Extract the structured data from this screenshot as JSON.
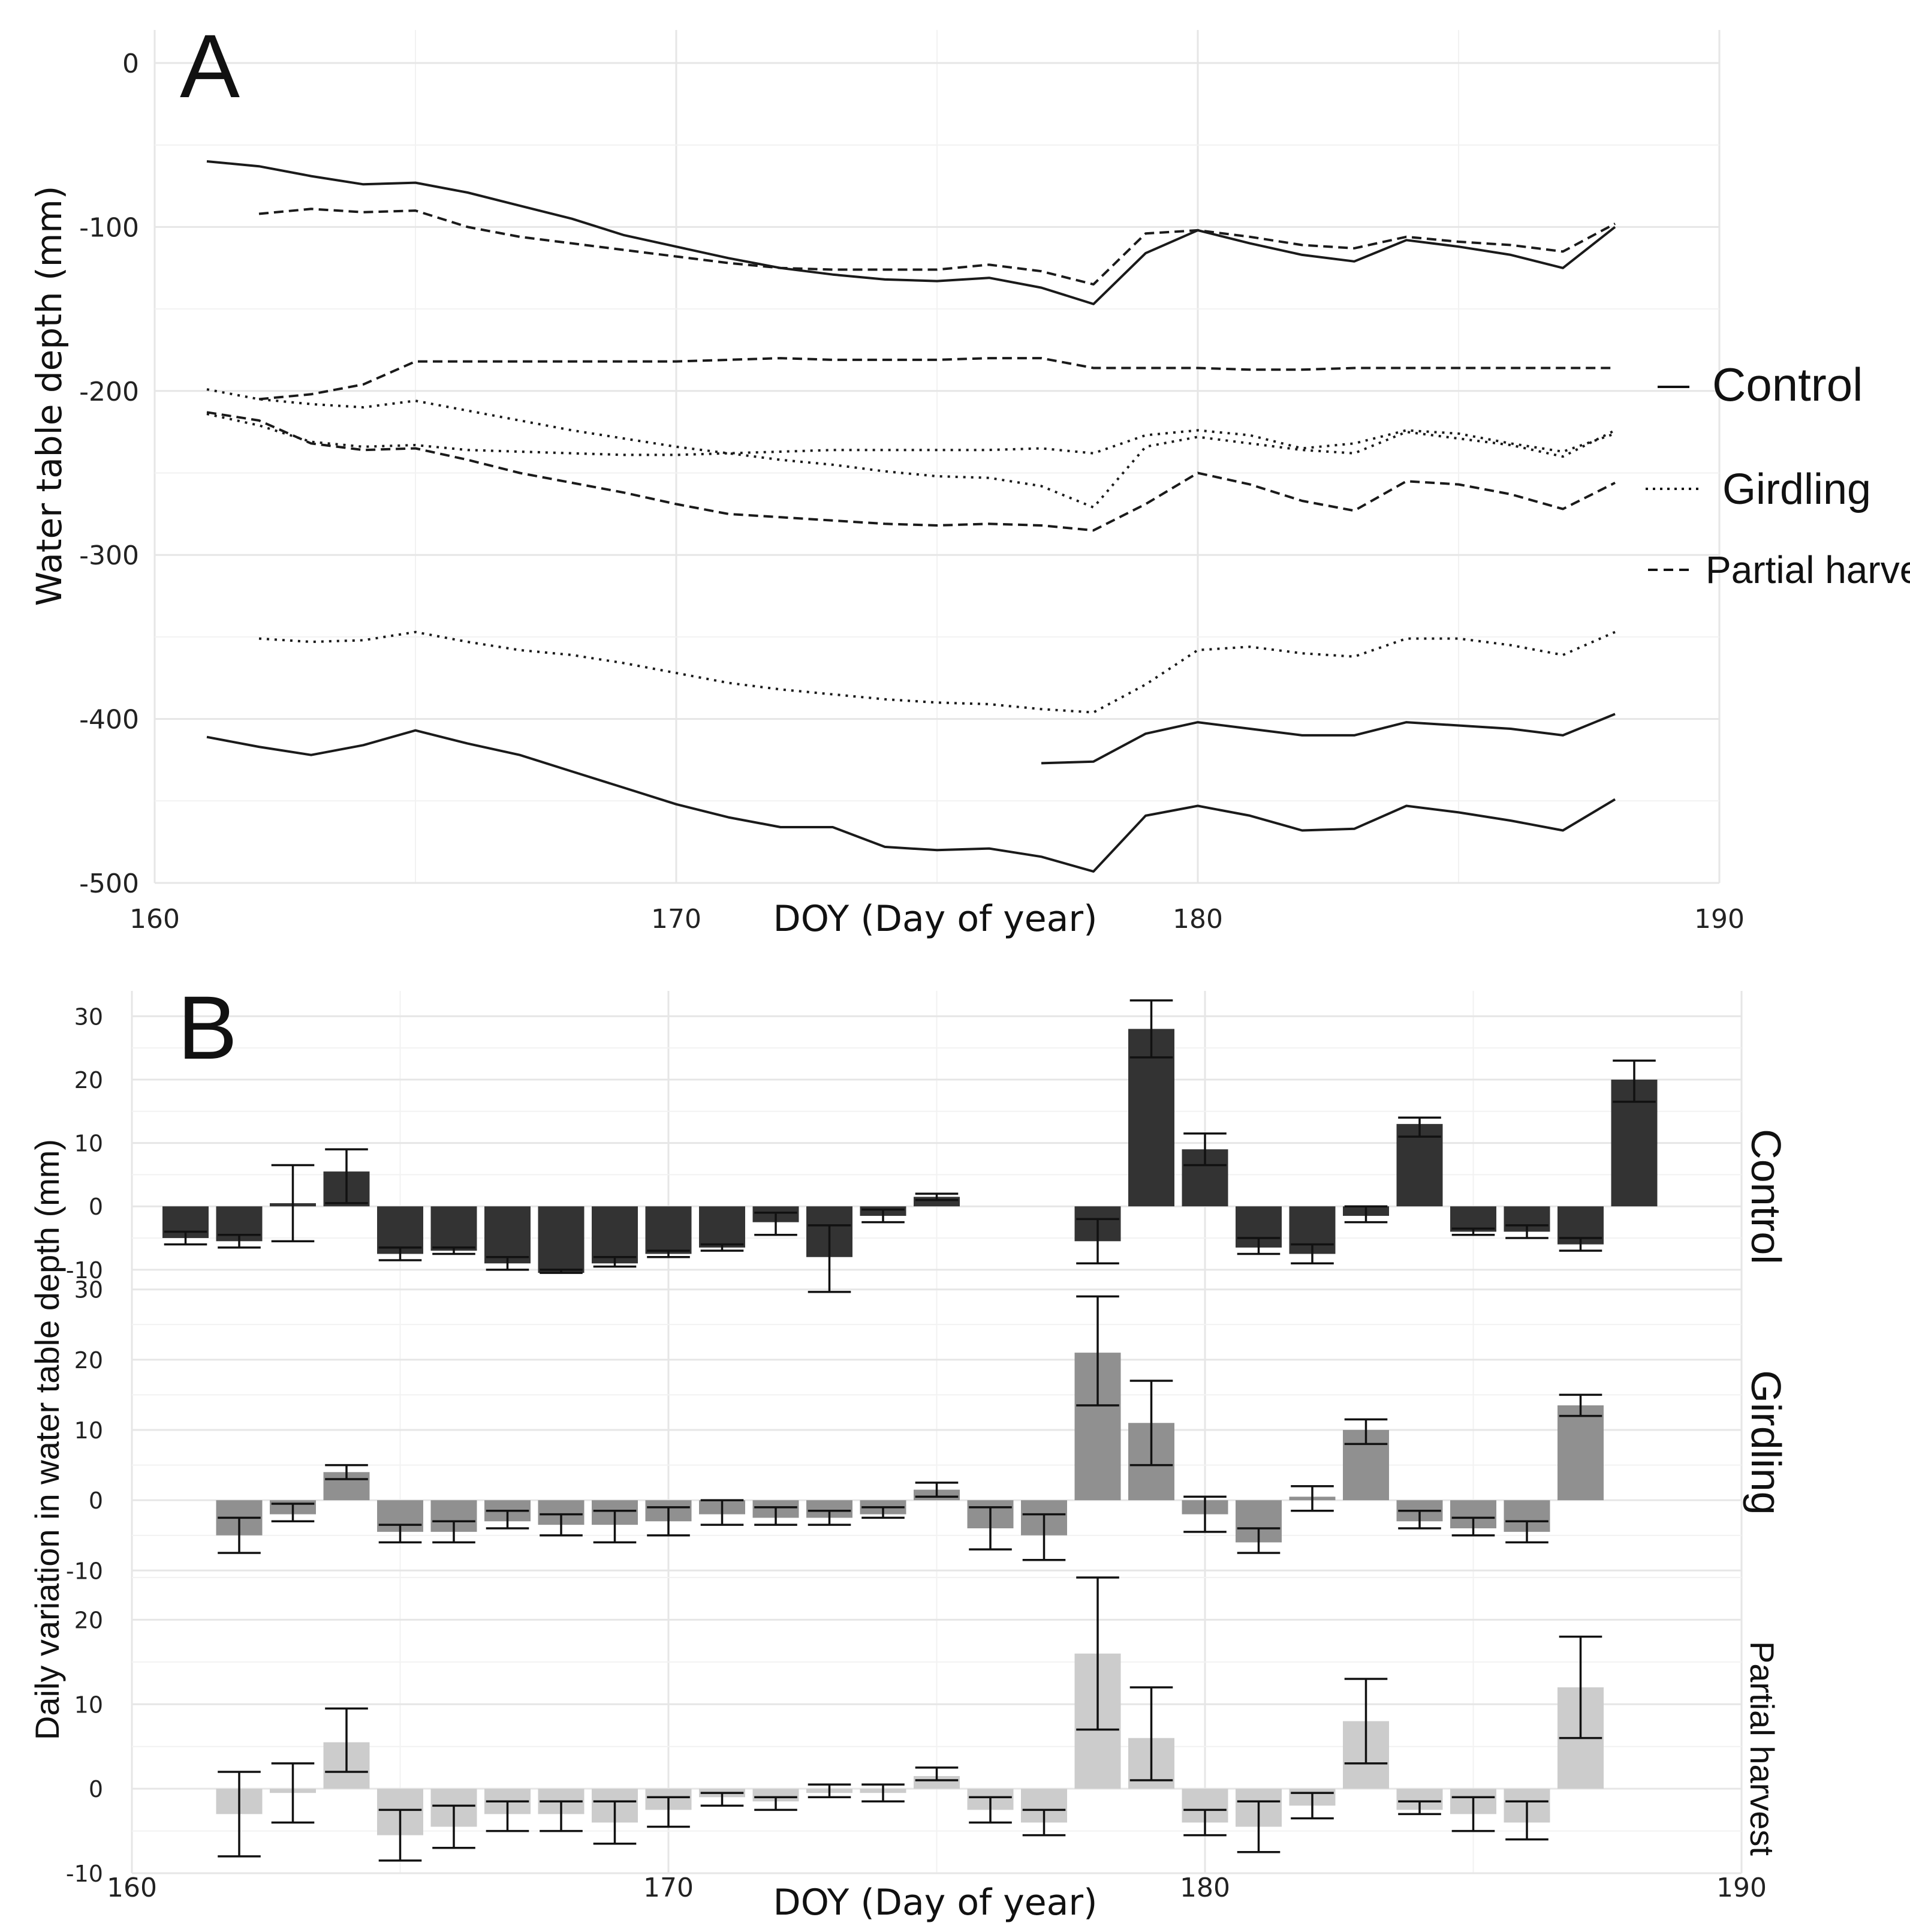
{
  "chart_data": [
    {
      "panel_label": "A",
      "type": "line",
      "xlabel": "DOY (Day of year)",
      "ylabel": "Water table depth (mm)",
      "xlim": [
        160,
        190
      ],
      "ylim": [
        -500,
        0
      ],
      "x_ticks": [
        "160",
        "170",
        "180",
        "190"
      ],
      "y_ticks": [
        "0",
        "-100",
        "-200",
        "-300",
        "-400",
        "-500"
      ],
      "legend": [
        {
          "label": "Control",
          "style": "solid"
        },
        {
          "label": "Girdling",
          "style": "dotted"
        },
        {
          "label": "Partial harvest",
          "style": "dashed"
        }
      ],
      "series": [
        {
          "name": "Control",
          "style": "solid",
          "x": [
            161,
            162,
            163,
            164,
            165,
            166,
            167,
            168,
            169,
            170,
            171,
            172,
            173,
            174,
            175,
            176,
            177,
            178,
            179,
            180,
            181,
            182,
            183,
            184,
            185,
            186,
            187,
            188
          ],
          "y": [
            -60,
            -63,
            -69,
            -74,
            -73,
            -79,
            -87,
            -95,
            -105,
            -112,
            -119,
            -125,
            -129,
            -132,
            -133,
            -131,
            -137,
            -147,
            -116,
            -102,
            -110,
            -117,
            -121,
            -108,
            -112,
            -117,
            -125,
            -100
          ]
        },
        {
          "name": "Control",
          "style": "solid",
          "x": [
            161,
            162,
            163,
            164,
            165,
            166,
            167,
            168,
            169,
            170,
            171,
            172,
            173,
            174,
            175,
            176,
            177,
            178,
            179,
            180,
            181,
            182,
            183,
            184,
            185,
            186,
            187,
            188
          ],
          "y": [
            -411,
            -417,
            -422,
            -416,
            -407,
            -415,
            -422,
            -432,
            -442,
            -452,
            -460,
            -466,
            -466,
            -478,
            -480,
            -479,
            -484,
            -493,
            -459,
            -453,
            -459,
            -468,
            -467,
            -453,
            -457,
            -462,
            -468,
            -449
          ]
        },
        {
          "name": "Control",
          "style": "solid",
          "x": [
            177,
            178,
            179,
            180,
            181,
            182,
            183,
            184,
            185,
            186,
            187,
            188
          ],
          "y": [
            -427,
            -426,
            -409,
            -402,
            -406,
            -410,
            -410,
            -402,
            -404,
            -406,
            -410,
            -397
          ]
        },
        {
          "name": "Girdling",
          "style": "dotted",
          "x": [
            161,
            162,
            163,
            164,
            165,
            166,
            167,
            168,
            169,
            170,
            171,
            172,
            173,
            174,
            175,
            176,
            177,
            178,
            179,
            180,
            181,
            182,
            183,
            184,
            185,
            186,
            187,
            188
          ],
          "y": [
            -199,
            -205,
            -208,
            -210,
            -206,
            -212,
            -218,
            -224,
            -229,
            -234,
            -238,
            -242,
            -245,
            -249,
            -252,
            -253,
            -258,
            -271,
            -234,
            -228,
            -232,
            -236,
            -238,
            -225,
            -229,
            -233,
            -240,
            -224
          ]
        },
        {
          "name": "Girdling",
          "style": "dotted",
          "x": [
            161,
            162,
            163,
            164,
            165,
            166,
            167,
            168,
            169,
            170,
            171,
            172,
            173,
            174,
            175,
            176,
            177,
            178,
            179,
            180,
            181,
            182,
            183,
            184,
            185,
            186,
            187,
            188
          ],
          "y": [
            -214,
            -221,
            -231,
            -234,
            -233,
            -236,
            -237,
            -238,
            -239,
            -239,
            -238,
            -237,
            -236,
            -236,
            -236,
            -236,
            -235,
            -238,
            -227,
            -224,
            -227,
            -235,
            -232,
            -224,
            -226,
            -232,
            -237,
            -226
          ]
        },
        {
          "name": "Girdling",
          "style": "dotted",
          "x": [
            162,
            163,
            164,
            165,
            166,
            167,
            168,
            169,
            170,
            171,
            172,
            173,
            174,
            175,
            176,
            177,
            178,
            179,
            180,
            181,
            182,
            183,
            184,
            185,
            186,
            187,
            188
          ],
          "y": [
            -351,
            -353,
            -352,
            -347,
            -353,
            -358,
            -361,
            -366,
            -372,
            -378,
            -382,
            -385,
            -388,
            -390,
            -391,
            -394,
            -396,
            -379,
            -358,
            -356,
            -360,
            -362,
            -351,
            -351,
            -355,
            -361,
            -347
          ]
        },
        {
          "name": "Partial harvest",
          "style": "dashed",
          "x": [
            162,
            163,
            164,
            165,
            166,
            167,
            168,
            169,
            170,
            171,
            172,
            173,
            174,
            175,
            176,
            177,
            178,
            179,
            180,
            181,
            182,
            183,
            184,
            185,
            186,
            187,
            188
          ],
          "y": [
            -92,
            -89,
            -91,
            -90,
            -100,
            -106,
            -110,
            -114,
            -118,
            -122,
            -125,
            -126,
            -126,
            -126,
            -123,
            -127,
            -135,
            -104,
            -102,
            -106,
            -111,
            -113,
            -106,
            -109,
            -111,
            -115,
            -98
          ]
        },
        {
          "name": "Partial harvest",
          "style": "dashed",
          "x": [
            162,
            163,
            164,
            165,
            166,
            167,
            168,
            169,
            170,
            171,
            172,
            173,
            174,
            175,
            176,
            177,
            178,
            179,
            180,
            181,
            182,
            183,
            184,
            185,
            186,
            187,
            188
          ],
          "y": [
            -205,
            -202,
            -196,
            -182,
            -182,
            -182,
            -182,
            -182,
            -182,
            -181,
            -180,
            -181,
            -181,
            -181,
            -180,
            -180,
            -186,
            -186,
            -186,
            -187,
            -187,
            -186,
            -186,
            -186,
            -186,
            -186,
            -186
          ]
        },
        {
          "name": "Partial harvest",
          "style": "dashed",
          "x": [
            161,
            162,
            163,
            164,
            165,
            166,
            167,
            168,
            169,
            170,
            171,
            172,
            173,
            174,
            175,
            176,
            177,
            178,
            179,
            180,
            181,
            182,
            183,
            184,
            185,
            186,
            187,
            188
          ],
          "y": [
            -213,
            -218,
            -232,
            -236,
            -235,
            -242,
            -250,
            -256,
            -262,
            -269,
            -275,
            -277,
            -279,
            -281,
            -282,
            -281,
            -282,
            -285,
            -269,
            -250,
            -257,
            -267,
            -273,
            -255,
            -257,
            -263,
            -272,
            -256
          ]
        }
      ]
    },
    {
      "panel_label": "B",
      "type": "bar",
      "xlabel": "DOY (Day of year)",
      "ylabel": "Daily variation in water table depth (mm)",
      "xlim": [
        160,
        190
      ],
      "x_ticks": [
        "160",
        "170",
        "180",
        "190"
      ],
      "facets": [
        {
          "name": "Control",
          "color": "#333333",
          "ylim": [
            -12,
            34
          ],
          "y_ticks": [
            "30",
            "20",
            "10",
            "0",
            "-10"
          ],
          "x": [
            161,
            162,
            163,
            164,
            165,
            166,
            167,
            168,
            169,
            170,
            171,
            172,
            173,
            174,
            175,
            176,
            178,
            179,
            180,
            181,
            182,
            183,
            184,
            185,
            186,
            187,
            188
          ],
          "values": [
            -5,
            -5.5,
            0.5,
            5.5,
            -7.5,
            -7,
            -9,
            -10.5,
            -9,
            -7.5,
            -6.5,
            -2.5,
            -8,
            -1.5,
            1.5,
            null,
            -5.5,
            28,
            9,
            -6.5,
            -7.5,
            -1.5,
            13,
            -4,
            -4,
            -6,
            20
          ],
          "err_low": [
            -6,
            -6.5,
            -5.5,
            0.5,
            -8.5,
            -7.5,
            -10,
            -10.5,
            -9.5,
            -8,
            -7,
            -4.5,
            -13.5,
            -2.5,
            1,
            null,
            -9,
            23.5,
            6.5,
            -7.5,
            -9,
            -2.5,
            11,
            -4.5,
            -5,
            -7,
            16.5
          ],
          "err_high": [
            -4,
            -4.5,
            6.5,
            9,
            -6.5,
            -6.5,
            -8,
            -10,
            -8,
            -7,
            -6,
            -1,
            -3,
            -0.5,
            2,
            null,
            -2,
            32.5,
            11.5,
            -5,
            -6,
            0,
            14,
            -3.5,
            -3,
            -5,
            23
          ]
        },
        {
          "name": "Girdling",
          "color": "#909090",
          "ylim": [
            -11,
            31
          ],
          "y_ticks": [
            "30",
            "20",
            "10",
            "0",
            "-10"
          ],
          "x": [
            162,
            163,
            164,
            165,
            166,
            167,
            168,
            169,
            170,
            171,
            172,
            173,
            174,
            175,
            176,
            177,
            178,
            179,
            180,
            181,
            182,
            183,
            184,
            185,
            186,
            187,
            188
          ],
          "values": [
            -5,
            -2,
            4,
            -4.5,
            -4.5,
            -3,
            -3.5,
            -3.5,
            -3,
            -2,
            -2.5,
            -2.5,
            -2,
            1.5,
            -4,
            -5,
            21,
            11,
            -2,
            -6,
            0.5,
            10,
            -3,
            -4,
            -4.5,
            13.5,
            null
          ],
          "err_low": [
            -7.5,
            -3,
            3,
            -6,
            -6,
            -4,
            -5,
            -6,
            -5,
            -3.5,
            -3.5,
            -3.5,
            -2.5,
            0.5,
            -7,
            -8.5,
            13.5,
            5,
            -4.5,
            -7.5,
            -1.5,
            8,
            -4,
            -5,
            -6,
            12,
            null
          ],
          "err_high": [
            -2.5,
            -0.5,
            5,
            -3.5,
            -3,
            -1.5,
            -2,
            -1.5,
            -1,
            0,
            -1,
            -1.5,
            -1,
            2.5,
            -1,
            -2,
            29,
            17,
            0.5,
            -4,
            2,
            11.5,
            -1.5,
            -2.5,
            -3,
            15,
            null
          ]
        },
        {
          "name": "Partial harvest",
          "color": "#cccccc",
          "ylim": [
            -10,
            25
          ],
          "y_ticks": [
            "20",
            "10",
            "0",
            "-10"
          ],
          "x": [
            162,
            163,
            164,
            165,
            166,
            167,
            168,
            169,
            170,
            171,
            172,
            173,
            174,
            175,
            176,
            177,
            178,
            179,
            180,
            181,
            182,
            183,
            184,
            185,
            186,
            187,
            188
          ],
          "values": [
            -3,
            -0.5,
            5.5,
            -5.5,
            -4.5,
            -3,
            -3,
            -4,
            -2.5,
            -1,
            -1.5,
            -0.5,
            -0.5,
            1.5,
            -2.5,
            -4,
            16,
            6,
            -4,
            -4.5,
            -2,
            8,
            -2.5,
            -3,
            -4,
            12,
            null
          ],
          "err_low": [
            -8,
            -4,
            2,
            -8.5,
            -7,
            -5,
            -5,
            -6.5,
            -4.5,
            -2,
            -2.5,
            -1,
            -1.5,
            1,
            -4,
            -5.5,
            7,
            1,
            -5.5,
            -7.5,
            -3.5,
            3,
            -3,
            -5,
            -6,
            6,
            null
          ],
          "err_high": [
            2,
            3,
            9.5,
            -2.5,
            -2,
            -1.5,
            -1.5,
            -1.5,
            -1,
            -0.5,
            -1,
            0.5,
            0.5,
            2.5,
            -1,
            -2.5,
            25,
            12,
            -2.5,
            -1.5,
            -0.5,
            13,
            -1.5,
            -1,
            -1.5,
            18,
            null
          ]
        }
      ]
    }
  ]
}
